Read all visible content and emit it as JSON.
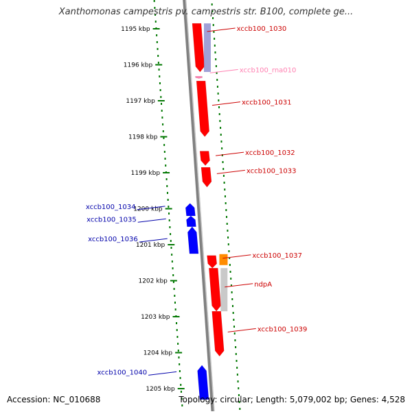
{
  "title": "Xanthomonas campestris pv. campestris str. B100, complete ge...",
  "footer": {
    "accession": "Accession: NC_010688",
    "summary": "Topology: circular; Length: 5,079,002 bp; Genes: 4,528"
  },
  "colors": {
    "forward_gene": "#ff0000",
    "reverse_gene": "#0000ff",
    "rna": "#ff7fb0",
    "orange_gene": "#ff8c00",
    "tick": "#007700",
    "backbone": "#808080"
  },
  "ticks": [
    {
      "kbp": 1195,
      "label": "1195 kbp"
    },
    {
      "kbp": 1196,
      "label": "1196 kbp"
    },
    {
      "kbp": 1197,
      "label": "1197 kbp"
    },
    {
      "kbp": 1198,
      "label": "1198 kbp"
    },
    {
      "kbp": 1199,
      "label": "1199 kbp"
    },
    {
      "kbp": 1200,
      "label": "1200 kbp"
    },
    {
      "kbp": 1201,
      "label": "1201 kbp"
    },
    {
      "kbp": 1202,
      "label": "1202 kbp"
    },
    {
      "kbp": 1203,
      "label": "1203 kbp"
    },
    {
      "kbp": 1204,
      "label": "1204 kbp"
    },
    {
      "kbp": 1205,
      "label": "1205 kbp"
    }
  ],
  "genes": [
    {
      "label": "xccb100_1030",
      "strand": "+",
      "start_kbp": 1194.85,
      "end_kbp": 1196.2,
      "color": "#ff0000",
      "label_kbp": 1195.0
    },
    {
      "label": "xccb100_rna010",
      "strand": "+",
      "start_kbp": 1196.32,
      "end_kbp": 1196.38,
      "color": "#ff7fb0",
      "label_kbp": 1196.15
    },
    {
      "label": "xccb100_1031",
      "strand": "+",
      "start_kbp": 1196.45,
      "end_kbp": 1198.0,
      "color": "#ff0000",
      "label_kbp": 1197.05
    },
    {
      "label": "xccb100_1032",
      "strand": "+",
      "start_kbp": 1198.4,
      "end_kbp": 1198.8,
      "color": "#ff0000",
      "label_kbp": 1198.45
    },
    {
      "label": "xccb100_1033",
      "strand": "+",
      "start_kbp": 1198.85,
      "end_kbp": 1199.4,
      "color": "#ff0000",
      "label_kbp": 1198.95
    },
    {
      "label": "xccb100_1034",
      "strand": "-",
      "start_kbp": 1199.85,
      "end_kbp": 1200.2,
      "color": "#0000ff",
      "label_kbp": 1199.95
    },
    {
      "label": "xccb100_1035",
      "strand": "-",
      "start_kbp": 1200.2,
      "end_kbp": 1200.5,
      "color": "#0000ff",
      "label_kbp": 1200.3
    },
    {
      "label": "xccb100_1036",
      "strand": "-",
      "start_kbp": 1200.5,
      "end_kbp": 1201.25,
      "color": "#0000ff",
      "label_kbp": 1200.85
    },
    {
      "label": "xccb100_1037",
      "strand": "+",
      "start_kbp": 1201.3,
      "end_kbp": 1201.65,
      "color": "#ff0000",
      "label_kbp": 1201.3
    },
    {
      "label": "ndpA",
      "strand": "+",
      "start_kbp": 1201.65,
      "end_kbp": 1202.85,
      "color": "#ff0000",
      "label_kbp": 1202.1
    },
    {
      "label": "xccb100_1039",
      "strand": "+",
      "start_kbp": 1202.85,
      "end_kbp": 1204.1,
      "color": "#ff0000",
      "label_kbp": 1203.35
    },
    {
      "label": "xccb100_1040",
      "strand": "-",
      "start_kbp": 1204.35,
      "end_kbp": 1205.3,
      "color": "#0000ff",
      "label_kbp": 1204.55
    }
  ]
}
